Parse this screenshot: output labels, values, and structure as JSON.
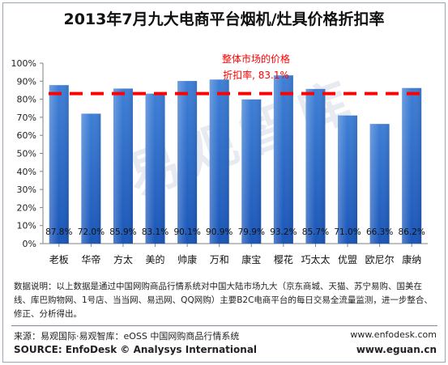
{
  "chart_data": {
    "type": "bar",
    "title": "2013年7月九大电商平台烟机/灶具价格折扣率",
    "categories": [
      "老板",
      "华帝",
      "方太",
      "美的",
      "帅康",
      "万和",
      "康宝",
      "樱花",
      "巧太太",
      "优盟",
      "欧尼尔",
      "康纳"
    ],
    "values": [
      87.8,
      72.0,
      85.9,
      83.1,
      90.1,
      90.9,
      79.9,
      93.2,
      85.7,
      71.0,
      66.3,
      86.2
    ],
    "value_labels": [
      "87.8%",
      "72.0%",
      "85.9%",
      "83.1%",
      "90.1%",
      "90.9%",
      "79.9%",
      "93.2%",
      "85.7%",
      "71.0%",
      "66.3%",
      "86.2%"
    ],
    "ylim": [
      0,
      100
    ],
    "yticks": [
      "0%",
      "10%",
      "20%",
      "30%",
      "40%",
      "50%",
      "60%",
      "70%",
      "80%",
      "90%",
      "100%"
    ],
    "reference_line": {
      "value": 83.1,
      "label_line1": "整体市场的价格",
      "label_line2": "折扣率, 83.1%",
      "color": "#ff0000"
    },
    "grid": false,
    "bar_color_top": "#3f7fd6",
    "bar_color_bottom": "#1a56b8"
  },
  "watermark": "易观智库",
  "notes": "数据说明：以上数据是通过中国网购商品行情系统对中国大陆市场九大（京东商城、天猫、苏宁易购、国美在线、库巴购物网、1号店、当当网、易迅网、QQ网购）主要B2C电商平台的每日交易全流量监测，进一步整合、修正、分析得出。",
  "source_cn": "来源：易观国际·易观智库：eOSS 中国网购商品行情系统",
  "site_1": "www.enfodesk.com",
  "source_en": "SOURCE: EnfoDesk © Analysys International",
  "site_2": "www.eguan.cn"
}
